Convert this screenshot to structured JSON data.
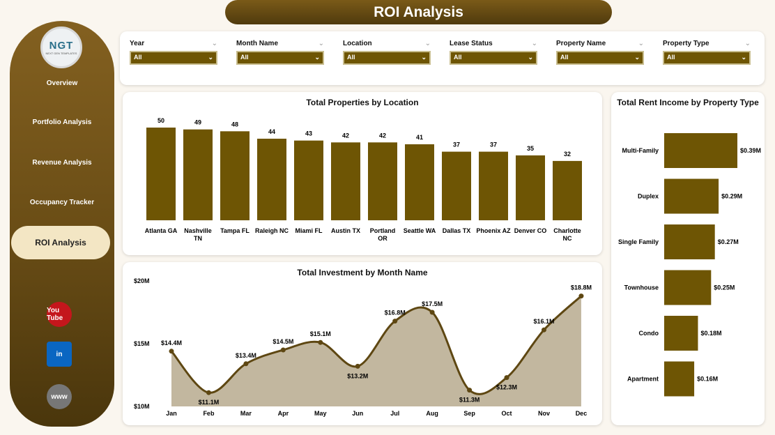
{
  "title": "ROI Analysis",
  "logo": {
    "text": "NGT",
    "sub": "NEXT GEN TEMPLATES"
  },
  "nav": [
    "Overview",
    "Portfolio Analysis",
    "Revenue Analysis",
    "Occupancy Tracker",
    "ROI Analysis"
  ],
  "active_nav": "ROI Analysis",
  "social": [
    {
      "name": "youtube-icon",
      "label": "You Tube",
      "color": "#c4161c"
    },
    {
      "name": "linkedin-icon",
      "label": "in",
      "color": "#0a66c2"
    },
    {
      "name": "globe-icon",
      "label": "www",
      "color": "#777777"
    }
  ],
  "filters": [
    {
      "label": "Year",
      "value": "All"
    },
    {
      "label": "Month Name",
      "value": "All"
    },
    {
      "label": "Location",
      "value": "All"
    },
    {
      "label": "Lease Status",
      "value": "All"
    },
    {
      "label": "Property Name",
      "value": "All"
    },
    {
      "label": "Property Type",
      "value": "All"
    }
  ],
  "colors": {
    "bar": "#6e5504",
    "line": "#5e4712",
    "area": "#c2b79f"
  },
  "chart_data": [
    {
      "type": "bar",
      "title": "Total Properties by Location",
      "categories": [
        "Atlanta GA",
        "Nashville TN",
        "Tampa FL",
        "Raleigh NC",
        "Miami FL",
        "Austin TX",
        "Portland OR",
        "Seattle WA",
        "Dallas TX",
        "Phoenix AZ",
        "Denver CO",
        "Charlotte NC"
      ],
      "values": [
        50,
        49,
        48,
        44,
        43,
        42,
        42,
        41,
        37,
        37,
        35,
        32
      ],
      "data_labels": [
        "50",
        "49",
        "48",
        "44",
        "43",
        "42",
        "42",
        "41",
        "37",
        "37",
        "35",
        "32"
      ]
    },
    {
      "type": "area",
      "title": "Total Investment by Month Name",
      "categories": [
        "Jan",
        "Feb",
        "Mar",
        "Apr",
        "May",
        "Jun",
        "Jul",
        "Aug",
        "Sep",
        "Oct",
        "Nov",
        "Dec"
      ],
      "values": [
        14.4,
        11.1,
        13.4,
        14.5,
        15.1,
        13.2,
        16.8,
        17.5,
        11.3,
        12.3,
        16.1,
        18.8
      ],
      "data_labels": [
        "$14.4M",
        "$11.1M",
        "$13.4M",
        "$14.5M",
        "$15.1M",
        "$13.2M",
        "$16.8M",
        "$17.5M",
        "$11.3M",
        "$12.3M",
        "$16.1M",
        "$18.8M"
      ],
      "yticks": [
        "$20M",
        "$15M",
        "$10M"
      ],
      "ylim": [
        10,
        20
      ],
      "unit": "$M"
    },
    {
      "type": "bar",
      "orientation": "horizontal",
      "title": "Total Rent Income by Property Type",
      "categories": [
        "Multi-Family",
        "Duplex",
        "Single Family",
        "Townhouse",
        "Condo",
        "Apartment"
      ],
      "values": [
        0.39,
        0.29,
        0.27,
        0.25,
        0.18,
        0.16
      ],
      "data_labels": [
        "$0.39M",
        "$0.29M",
        "$0.27M",
        "$0.25M",
        "$0.18M",
        "$0.16M"
      ],
      "unit": "$M"
    }
  ]
}
